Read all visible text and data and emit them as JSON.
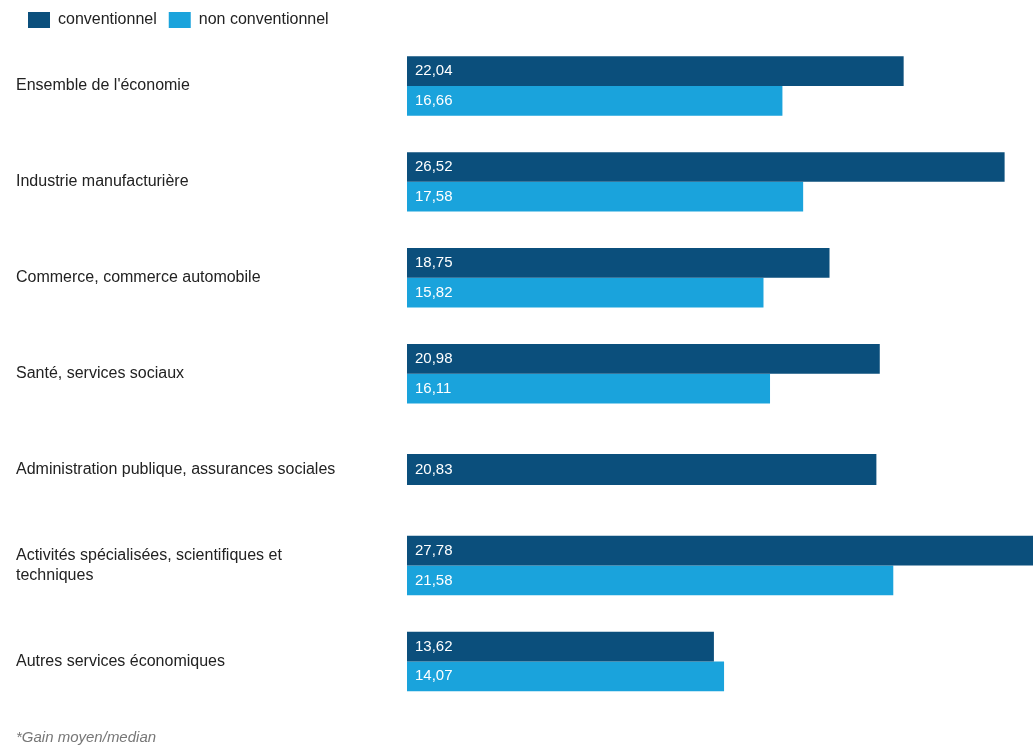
{
  "chart_data": {
    "type": "bar",
    "orientation": "horizontal",
    "categories": [
      "Ensemble de l'économie",
      "Industrie manufacturière",
      "Commerce, commerce automobile",
      "Santé, services sociaux",
      "Administration publique, assurances sociales",
      "Activités spécialisées, scientifiques et techniques",
      "Autres services économiques"
    ],
    "series": [
      {
        "name": "conventionnel",
        "color": "#0b4f7c",
        "values": [
          22.04,
          26.52,
          18.75,
          20.98,
          20.83,
          27.78,
          13.62
        ],
        "value_labels": [
          "22,04",
          "26,52",
          "18,75",
          "20,98",
          "20,83",
          "27,78",
          "13,62"
        ]
      },
      {
        "name": "non conventionnel",
        "color": "#1aa3dc",
        "values": [
          16.66,
          17.58,
          15.82,
          16.11,
          null,
          21.58,
          14.07
        ],
        "value_labels": [
          "16,66",
          "17,58",
          "15,82",
          "16,11",
          null,
          "21,58",
          "14,07"
        ]
      }
    ],
    "legend": "top left",
    "annotations": [
      "*Gain moyen/median"
    ]
  }
}
